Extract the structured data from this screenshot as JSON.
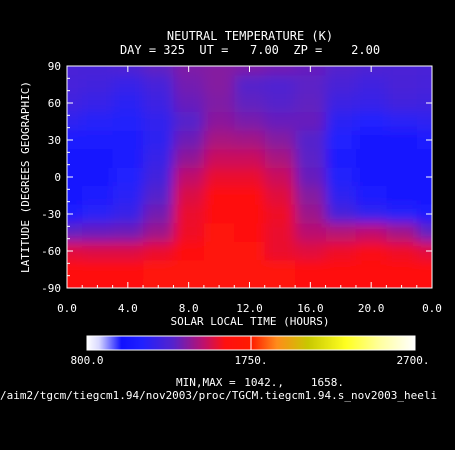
{
  "chart_data": {
    "type": "heatmap",
    "title": "NEUTRAL TEMPERATURE (K)",
    "subtitle": "DAY = 325  UT =   7.00  ZP =    2.00",
    "xlabel": "SOLAR LOCAL TIME (HOURS)",
    "ylabel": "LATITUDE (DEGREES GEOGRAPHIC)",
    "xlim": [
      0,
      24
    ],
    "ylim": [
      -90,
      90
    ],
    "x_ticks": [
      "0.0",
      "4.0",
      "8.0",
      "12.0",
      "16.0",
      "20.0",
      "0.0"
    ],
    "y_ticks": [
      "-90",
      "-60",
      "-30",
      "0",
      "30",
      "60",
      "90"
    ],
    "x": [
      0,
      2,
      4,
      6,
      8,
      10,
      12,
      14,
      16,
      18,
      20,
      22,
      24
    ],
    "y": [
      90,
      75,
      60,
      45,
      30,
      15,
      0,
      -15,
      -30,
      -45,
      -60,
      -75,
      -90
    ],
    "values": [
      [
        1260,
        1260,
        1280,
        1320,
        1370,
        1380,
        1370,
        1350,
        1330,
        1300,
        1280,
        1270,
        1260
      ],
      [
        1250,
        1240,
        1200,
        1250,
        1350,
        1380,
        1300,
        1280,
        1310,
        1260,
        1230,
        1260,
        1250
      ],
      [
        1230,
        1200,
        1160,
        1220,
        1330,
        1370,
        1320,
        1300,
        1320,
        1220,
        1200,
        1240,
        1230
      ],
      [
        1170,
        1140,
        1130,
        1180,
        1300,
        1390,
        1360,
        1330,
        1330,
        1160,
        1120,
        1150,
        1170
      ],
      [
        1080,
        1080,
        1110,
        1170,
        1340,
        1440,
        1430,
        1380,
        1300,
        1120,
        1070,
        1060,
        1080
      ],
      [
        1060,
        1070,
        1110,
        1200,
        1400,
        1500,
        1500,
        1440,
        1310,
        1110,
        1060,
        1050,
        1060
      ],
      [
        1050,
        1070,
        1120,
        1240,
        1480,
        1560,
        1560,
        1500,
        1330,
        1130,
        1070,
        1050,
        1050
      ],
      [
        1060,
        1090,
        1150,
        1300,
        1530,
        1600,
        1600,
        1540,
        1380,
        1170,
        1090,
        1070,
        1060
      ],
      [
        1100,
        1150,
        1200,
        1350,
        1560,
        1620,
        1610,
        1570,
        1420,
        1250,
        1180,
        1140,
        1100
      ],
      [
        1320,
        1330,
        1340,
        1420,
        1570,
        1630,
        1620,
        1560,
        1470,
        1460,
        1480,
        1430,
        1320
      ],
      [
        1540,
        1530,
        1530,
        1560,
        1610,
        1640,
        1630,
        1560,
        1540,
        1570,
        1590,
        1570,
        1540
      ],
      [
        1600,
        1600,
        1610,
        1630,
        1650,
        1658,
        1650,
        1630,
        1610,
        1610,
        1610,
        1600,
        1600
      ],
      [
        1610,
        1610,
        1620,
        1640,
        1650,
        1658,
        1655,
        1640,
        1620,
        1615,
        1615,
        1610,
        1610
      ]
    ],
    "colorbar": {
      "labels": [
        "800.0",
        "1750.",
        "2700."
      ],
      "range": [
        800,
        2700
      ],
      "stops": [
        {
          "v": 800,
          "c": "#ffffff"
        },
        {
          "v": 870,
          "c": "#d8d8ff"
        },
        {
          "v": 1000,
          "c": "#1010ff"
        },
        {
          "v": 1120,
          "c": "#2020ff"
        },
        {
          "v": 1300,
          "c": "#5522cc"
        },
        {
          "v": 1480,
          "c": "#c0106a"
        },
        {
          "v": 1600,
          "c": "#ff1010"
        },
        {
          "v": 1750,
          "c": "#ff1a00"
        },
        {
          "v": 1900,
          "c": "#ff8c1a"
        },
        {
          "v": 2080,
          "c": "#c8c800"
        },
        {
          "v": 2300,
          "c": "#ffff20"
        },
        {
          "v": 2500,
          "c": "#ffffa0"
        },
        {
          "v": 2700,
          "c": "#ffffff"
        }
      ]
    },
    "minmax_label": "MIN,MAX =",
    "min": "1042.,",
    "max": "1658.",
    "footer_path": "/aim2/tgcm/tiegcm1.94/nov2003/proc/TGCM.tiegcm1.94.s_nov2003_heeli"
  }
}
